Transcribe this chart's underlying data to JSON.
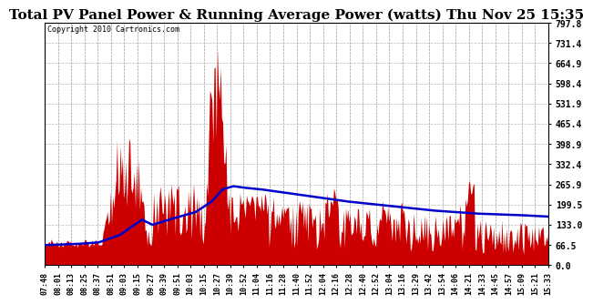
{
  "title": "Total PV Panel Power & Running Average Power (watts) Thu Nov 25 15:35",
  "copyright": "Copyright 2010 Cartronics.com",
  "ylabel_right": [
    "0.0",
    "66.5",
    "133.0",
    "199.5",
    "265.9",
    "332.4",
    "398.9",
    "465.4",
    "531.9",
    "598.4",
    "664.9",
    "731.4",
    "797.8"
  ],
  "ymax": 797.8,
  "ymin": 0.0,
  "background_color": "#ffffff",
  "fill_color": "#cc0000",
  "line_color": "#0000cc",
  "grid_color": "#aaaaaa",
  "title_fontsize": 11,
  "xtick_labels": [
    "07:48",
    "08:01",
    "08:13",
    "08:25",
    "08:37",
    "08:51",
    "09:03",
    "09:15",
    "09:27",
    "09:39",
    "09:51",
    "10:03",
    "10:15",
    "10:27",
    "10:39",
    "10:52",
    "11:04",
    "11:16",
    "11:28",
    "11:40",
    "11:52",
    "12:04",
    "12:16",
    "12:28",
    "12:40",
    "12:52",
    "13:04",
    "13:16",
    "13:29",
    "13:42",
    "13:54",
    "14:06",
    "14:21",
    "14:33",
    "14:45",
    "14:57",
    "15:09",
    "15:21",
    "15:33"
  ]
}
